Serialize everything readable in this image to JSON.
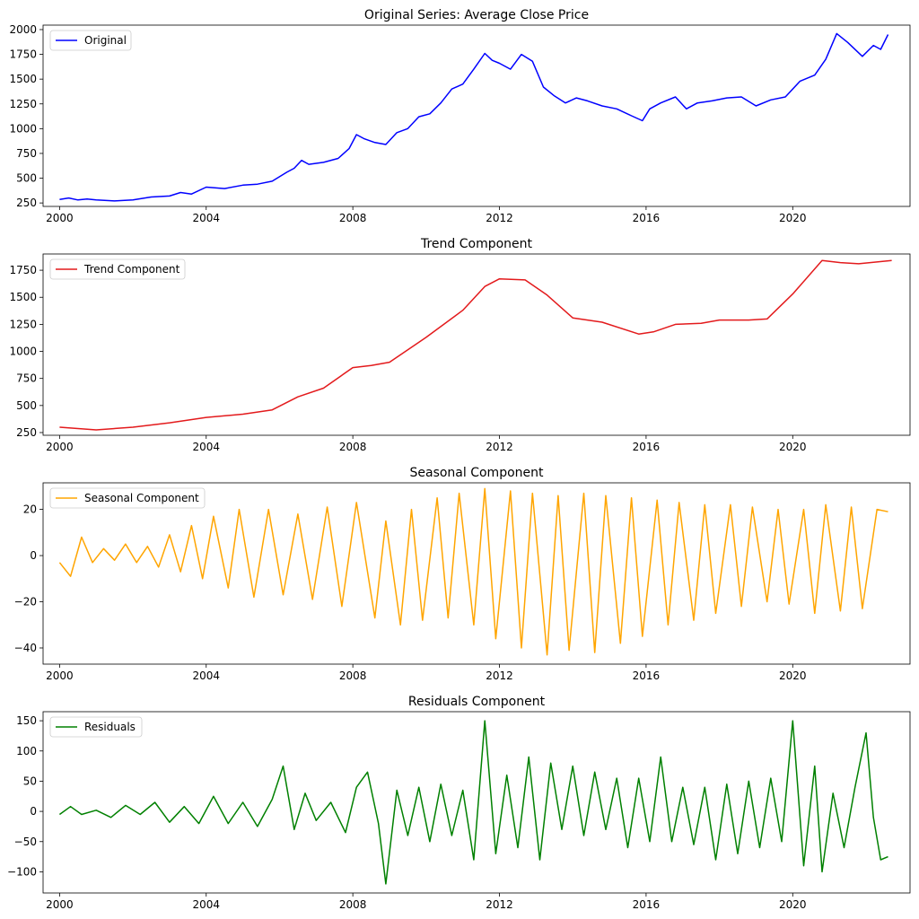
{
  "chart_data": [
    {
      "type": "line",
      "title": "Original Series: Average Close Price",
      "legend": "Original",
      "legend_position": "top-left",
      "color": "#0000ff",
      "xlim": [
        1999.55,
        2023.2
      ],
      "ylim": [
        215,
        2045
      ],
      "xticks": [
        2000,
        2004,
        2008,
        2012,
        2016,
        2020
      ],
      "xtick_labels": [
        "2000",
        "2004",
        "2008",
        "2012",
        "2016",
        "2020"
      ],
      "yticks": [
        250,
        500,
        750,
        1000,
        1250,
        1500,
        1750,
        2000
      ],
      "ytick_labels": [
        "250",
        "500",
        "750",
        "1000",
        "1250",
        "1500",
        "1750",
        "2000"
      ],
      "x": [
        2000,
        2000.25,
        2000.5,
        2000.75,
        2001,
        2001.5,
        2002,
        2002.5,
        2003,
        2003.3,
        2003.6,
        2004,
        2004.5,
        2005,
        2005.4,
        2005.8,
        2006.2,
        2006.4,
        2006.6,
        2006.8,
        2007.2,
        2007.6,
        2007.9,
        2008.1,
        2008.3,
        2008.6,
        2008.9,
        2009.2,
        2009.5,
        2009.8,
        2010.1,
        2010.4,
        2010.7,
        2011,
        2011.3,
        2011.6,
        2011.8,
        2012,
        2012.3,
        2012.6,
        2012.9,
        2013.2,
        2013.5,
        2013.8,
        2014.1,
        2014.4,
        2014.8,
        2015.2,
        2015.6,
        2015.9,
        2016.1,
        2016.4,
        2016.8,
        2017.1,
        2017.4,
        2017.8,
        2018.2,
        2018.6,
        2019,
        2019.4,
        2019.8,
        2020.2,
        2020.6,
        2020.9,
        2021.2,
        2021.5,
        2021.9,
        2022.2,
        2022.4,
        2022.6
      ],
      "values": [
        285,
        300,
        280,
        290,
        280,
        270,
        280,
        310,
        320,
        355,
        340,
        410,
        395,
        430,
        440,
        470,
        560,
        600,
        680,
        640,
        660,
        700,
        800,
        940,
        900,
        860,
        840,
        960,
        1000,
        1120,
        1150,
        1260,
        1400,
        1450,
        1600,
        1760,
        1690,
        1660,
        1600,
        1750,
        1680,
        1420,
        1330,
        1260,
        1310,
        1280,
        1230,
        1200,
        1130,
        1080,
        1200,
        1260,
        1320,
        1200,
        1260,
        1280,
        1310,
        1320,
        1230,
        1290,
        1320,
        1480,
        1540,
        1700,
        1960,
        1870,
        1730,
        1840,
        1800,
        1950
      ]
    },
    {
      "type": "line",
      "title": "Trend Component",
      "legend": "Trend Component",
      "legend_position": "top-left",
      "color": "#e31a1c",
      "xlim": [
        1999.55,
        2023.2
      ],
      "ylim": [
        225,
        1900
      ],
      "xticks": [
        2000,
        2004,
        2008,
        2012,
        2016,
        2020
      ],
      "xtick_labels": [
        "2000",
        "2004",
        "2008",
        "2012",
        "2016",
        "2020"
      ],
      "yticks": [
        250,
        500,
        750,
        1000,
        1250,
        1500,
        1750
      ],
      "ytick_labels": [
        "250",
        "500",
        "750",
        "1000",
        "1250",
        "1500",
        "1750"
      ],
      "x": [
        2000,
        2001,
        2002,
        2003,
        2004,
        2005,
        2005.8,
        2006.5,
        2007.2,
        2008,
        2008.5,
        2009,
        2010,
        2011,
        2011.6,
        2012,
        2012.7,
        2013.3,
        2014,
        2014.8,
        2015.8,
        2016.2,
        2016.8,
        2017.5,
        2018,
        2018.8,
        2019.3,
        2020,
        2020.8,
        2021.3,
        2021.8,
        2022.7
      ],
      "values": [
        300,
        275,
        300,
        340,
        390,
        420,
        460,
        580,
        660,
        850,
        870,
        900,
        1130,
        1380,
        1600,
        1670,
        1660,
        1520,
        1310,
        1270,
        1160,
        1180,
        1250,
        1260,
        1290,
        1290,
        1300,
        1530,
        1840,
        1820,
        1810,
        1840
      ]
    },
    {
      "type": "line",
      "title": "Seasonal Component",
      "legend": "Seasonal Component",
      "legend_position": "top-left",
      "color": "#ffa500",
      "xlim": [
        1999.55,
        2023.2
      ],
      "ylim": [
        -47,
        31.5
      ],
      "xticks": [
        2000,
        2004,
        2008,
        2012,
        2016,
        2020
      ],
      "xtick_labels": [
        "2000",
        "2004",
        "2008",
        "2012",
        "2016",
        "2020"
      ],
      "yticks": [
        -40,
        -20,
        0,
        20
      ],
      "ytick_labels": [
        "−40",
        "−20",
        "0",
        "20"
      ],
      "x": [
        2000,
        2000.3,
        2000.6,
        2000.9,
        2001.2,
        2001.5,
        2001.8,
        2002.1,
        2002.4,
        2002.7,
        2003,
        2003.3,
        2003.6,
        2003.9,
        2004.2,
        2004.6,
        2004.9,
        2005.3,
        2005.7,
        2006.1,
        2006.5,
        2006.9,
        2007.3,
        2007.7,
        2008.1,
        2008.6,
        2008.9,
        2009.3,
        2009.6,
        2009.9,
        2010.3,
        2010.6,
        2010.9,
        2011.3,
        2011.6,
        2011.9,
        2012.3,
        2012.6,
        2012.9,
        2013.3,
        2013.6,
        2013.9,
        2014.3,
        2014.6,
        2014.9,
        2015.3,
        2015.6,
        2015.9,
        2016.3,
        2016.6,
        2016.9,
        2017.3,
        2017.6,
        2017.9,
        2018.3,
        2018.6,
        2018.9,
        2019.3,
        2019.6,
        2019.9,
        2020.3,
        2020.6,
        2020.9,
        2021.3,
        2021.6,
        2021.9,
        2022.3,
        2022.6
      ],
      "values": [
        -3,
        -9,
        8,
        -3,
        3,
        -2,
        5,
        -3,
        4,
        -5,
        9,
        -7,
        13,
        -10,
        17,
        -14,
        20,
        -18,
        20,
        -17,
        18,
        -19,
        21,
        -22,
        23,
        -27,
        15,
        -30,
        20,
        -28,
        25,
        -27,
        27,
        -30,
        29,
        -36,
        28,
        -40,
        27,
        -43,
        26,
        -41,
        27,
        -42,
        26,
        -38,
        25,
        -35,
        24,
        -30,
        23,
        -28,
        22,
        -25,
        22,
        -22,
        21,
        -20,
        20,
        -21,
        20,
        -25,
        22,
        -24,
        21,
        -23,
        20,
        19
      ]
    },
    {
      "type": "line",
      "title": "Residuals Component",
      "legend": "Residuals",
      "legend_position": "top-left",
      "color": "#008000",
      "xlim": [
        1999.55,
        2023.2
      ],
      "ylim": [
        -135,
        165
      ],
      "xticks": [
        2000,
        2004,
        2008,
        2012,
        2016,
        2020
      ],
      "xtick_labels": [
        "2000",
        "2004",
        "2008",
        "2012",
        "2016",
        "2020"
      ],
      "yticks": [
        -100,
        -50,
        0,
        50,
        100,
        150
      ],
      "ytick_labels": [
        "−100",
        "−50",
        "0",
        "50",
        "100",
        "150"
      ],
      "x": [
        2000,
        2000.3,
        2000.6,
        2001,
        2001.4,
        2001.8,
        2002.2,
        2002.6,
        2003,
        2003.4,
        2003.8,
        2004.2,
        2004.6,
        2005,
        2005.4,
        2005.8,
        2006.1,
        2006.4,
        2006.7,
        2007,
        2007.4,
        2007.8,
        2008.1,
        2008.4,
        2008.7,
        2008.9,
        2009.2,
        2009.5,
        2009.8,
        2010.1,
        2010.4,
        2010.7,
        2011,
        2011.3,
        2011.6,
        2011.9,
        2012.2,
        2012.5,
        2012.8,
        2013.1,
        2013.4,
        2013.7,
        2014,
        2014.3,
        2014.6,
        2014.9,
        2015.2,
        2015.5,
        2015.8,
        2016.1,
        2016.4,
        2016.7,
        2017,
        2017.3,
        2017.6,
        2017.9,
        2018.2,
        2018.5,
        2018.8,
        2019.1,
        2019.4,
        2019.7,
        2020,
        2020.3,
        2020.6,
        2020.8,
        2021.1,
        2021.4,
        2021.7,
        2022,
        2022.2,
        2022.4,
        2022.6
      ],
      "values": [
        -5,
        8,
        -5,
        2,
        -10,
        10,
        -5,
        15,
        -18,
        8,
        -20,
        25,
        -20,
        15,
        -25,
        20,
        75,
        -30,
        30,
        -15,
        15,
        -35,
        40,
        65,
        -20,
        -120,
        35,
        -40,
        40,
        -50,
        45,
        -40,
        35,
        -80,
        150,
        -70,
        60,
        -60,
        90,
        -80,
        80,
        -30,
        75,
        -40,
        65,
        -30,
        55,
        -60,
        55,
        -50,
        90,
        -50,
        40,
        -55,
        40,
        -80,
        45,
        -70,
        50,
        -60,
        55,
        -50,
        150,
        -90,
        75,
        -100,
        30,
        -60,
        40,
        130,
        -10,
        -80,
        -75
      ]
    }
  ]
}
